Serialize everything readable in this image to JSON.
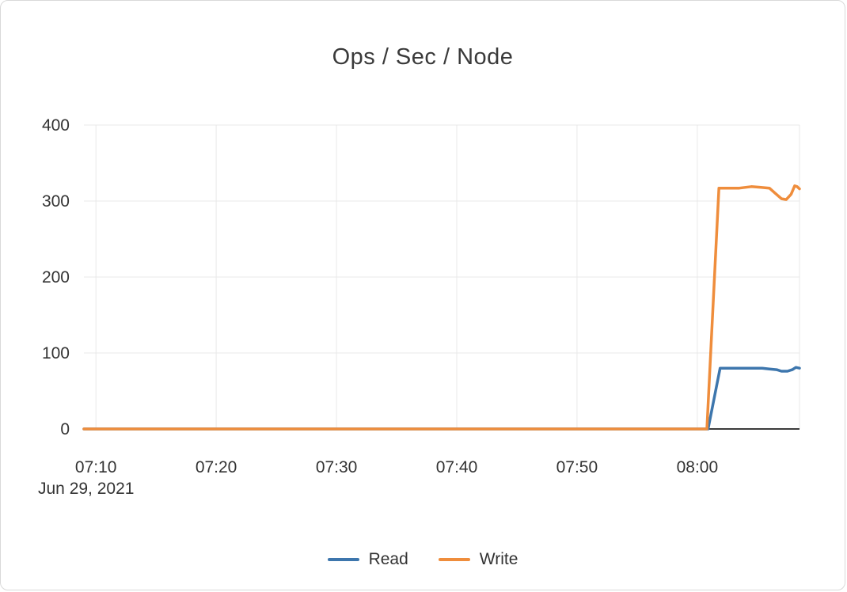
{
  "page": {
    "title": "Ops / Sec / Node"
  },
  "chart_data": {
    "type": "line",
    "title": "Ops / Sec / Node",
    "xlabel": "",
    "ylabel": "",
    "date_label": "Jun 29, 2021",
    "grid": true,
    "legend_position": "bottom-center",
    "xlim": [
      429,
      488.5
    ],
    "ylim": [
      0,
      400
    ],
    "y_ticks": [
      0,
      100,
      200,
      300,
      400
    ],
    "x_ticks": [
      {
        "pos": 430,
        "label": "07:10"
      },
      {
        "pos": 440,
        "label": "07:20"
      },
      {
        "pos": 450,
        "label": "07:30"
      },
      {
        "pos": 460,
        "label": "07:40"
      },
      {
        "pos": 470,
        "label": "07:50"
      },
      {
        "pos": 480,
        "label": "08:00"
      }
    ],
    "series": [
      {
        "name": "Read",
        "color": "#3d76ad",
        "points": [
          [
            429,
            0
          ],
          [
            480.9,
            0
          ],
          [
            481.9,
            80
          ],
          [
            483.5,
            80
          ],
          [
            484.6,
            80
          ],
          [
            485.4,
            80
          ],
          [
            486.0,
            79
          ],
          [
            486.6,
            78
          ],
          [
            487.0,
            76
          ],
          [
            487.5,
            76
          ],
          [
            487.9,
            78
          ],
          [
            488.2,
            81
          ],
          [
            488.5,
            80
          ]
        ]
      },
      {
        "name": "Write",
        "color": "#ef8d3c",
        "points": [
          [
            429,
            0
          ],
          [
            480.8,
            0
          ],
          [
            481.8,
            317
          ],
          [
            483.5,
            317
          ],
          [
            484.5,
            319
          ],
          [
            485.3,
            318
          ],
          [
            486.0,
            317
          ],
          [
            486.5,
            310
          ],
          [
            487.0,
            303
          ],
          [
            487.4,
            302
          ],
          [
            487.8,
            309
          ],
          [
            488.1,
            320
          ],
          [
            488.3,
            319
          ],
          [
            488.5,
            316
          ]
        ]
      }
    ],
    "axis_colors": {
      "gridline": "#e8e8e8",
      "zero_line": "#3b3b3b",
      "tick_text": "#333333"
    }
  }
}
